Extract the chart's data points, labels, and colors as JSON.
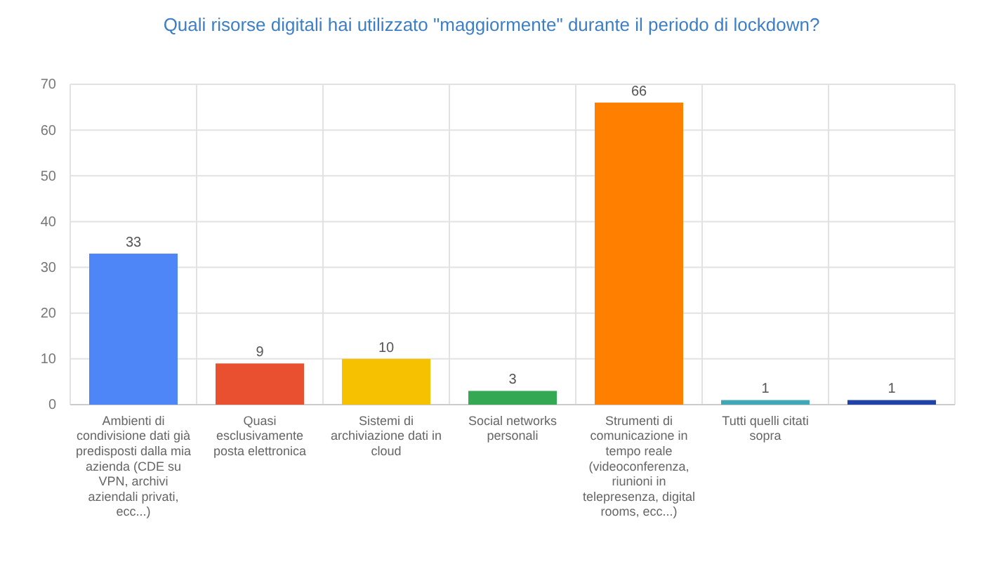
{
  "chart_data": {
    "type": "bar",
    "title": "Quali risorse digitali hai utilizzato \"maggiormente\" durante il periodo di lockdown?",
    "categories": [
      "Ambienti di condivisione dati già predisposti dalla mia azienda (CDE su VPN, archivi aziendali privati, ecc...)",
      "Quasi esclusivamente posta elettronica",
      "Sistemi di archiviazione dati in cloud",
      "Social networks personali",
      "Strumenti di comunicazione in tempo reale (videoconferenza, riunioni in telepresenza, digital rooms, ecc...)",
      "Tutti quelli citati sopra",
      null
    ],
    "values": [
      33,
      9,
      10,
      3,
      66,
      1,
      1
    ],
    "colors": [
      "#4f86f7",
      "#e8502f",
      "#f6c200",
      "#34a853",
      "#ff8000",
      "#40a8b4",
      "#2143a8"
    ],
    "ylim": [
      0,
      70
    ],
    "yticks": [
      0,
      10,
      20,
      30,
      40,
      50,
      60,
      70
    ],
    "grid": true,
    "data_labels": true
  }
}
